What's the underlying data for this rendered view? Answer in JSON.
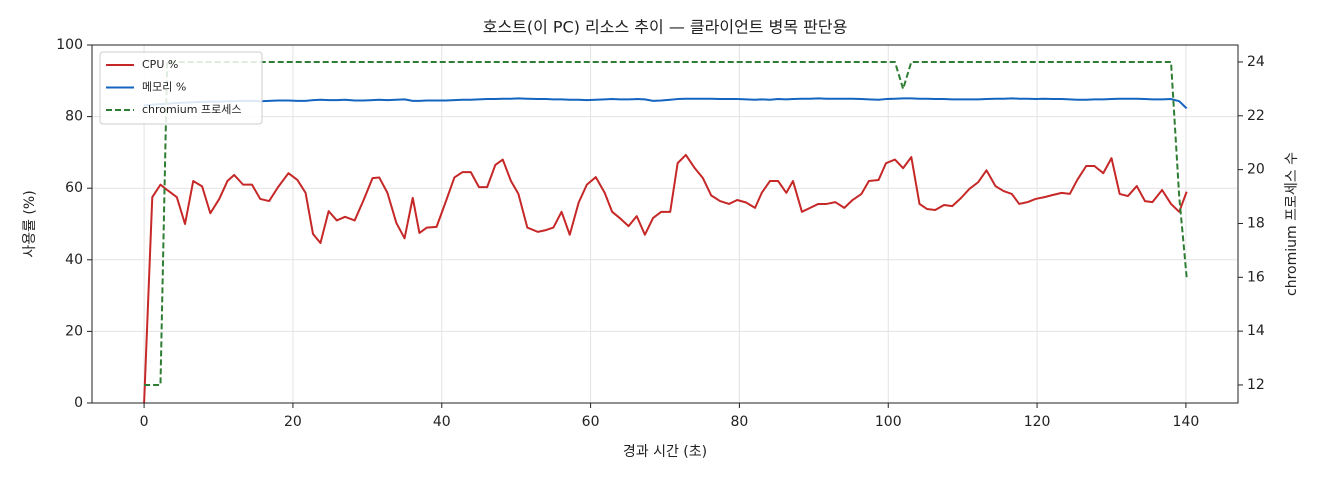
{
  "chart_data": {
    "type": "line",
    "title": "호스트(이 PC) 리소스 추이 — 클라이언트 병목 판단용",
    "xlabel": "경과 시간 (초)",
    "ylabel": "사용률 (%)",
    "y2label": "chromium 프로세스 수",
    "x": [
      0,
      1.1,
      2.2,
      3.1,
      4.4,
      5.5,
      6.6,
      7.8,
      8.9,
      10.1,
      11.2,
      12.1,
      13.3,
      14.5,
      15.6,
      16.8,
      18,
      19.4,
      20.6,
      21.7,
      22.7,
      23.7,
      24.8,
      25.9,
      27,
      28.3,
      29.5,
      30.7,
      31.6,
      32.7,
      33.9,
      35,
      36.1,
      37,
      38,
      39.3,
      40.5,
      41.7,
      42.8,
      43.9,
      45,
      46.1,
      47.2,
      48.2,
      49.3,
      50.3,
      51.5,
      52.9,
      54,
      55,
      56.1,
      57.2,
      58.4,
      59.5,
      60.7,
      61.9,
      62.9,
      63.9,
      65.1,
      66.2,
      67.3,
      68.4,
      69.5,
      70.7,
      71.7,
      72.8,
      74,
      75.1,
      76.2,
      77.4,
      78.6,
      79.7,
      80.9,
      82.1,
      83,
      84.1,
      85.2,
      86.3,
      87.2,
      88.4,
      89.5,
      90.6,
      91.7,
      92.9,
      94.1,
      95.2,
      96.4,
      97.4,
      98.7,
      99.7,
      100.9,
      102,
      103.1,
      104.2,
      105.2,
      106.3,
      107.5,
      108.6,
      109.8,
      110.9,
      112.1,
      113.2,
      114.4,
      115.5,
      116.6,
      117.6,
      118.7,
      119.8,
      121,
      122.1,
      123.3,
      124.4,
      125.4,
      126.6,
      127.7,
      128.9,
      130,
      131.1,
      132.2,
      133.4,
      134.5,
      135.5,
      136.8,
      138,
      139.1,
      140.1
    ],
    "series": [
      {
        "name": "CPU %",
        "color": "#c62828",
        "values": [
          0,
          57.5,
          61,
          59.5,
          57.5,
          50,
          62,
          60.5,
          53,
          57,
          62,
          63.7,
          61,
          61,
          57,
          56.4,
          60.3,
          64.2,
          62.3,
          58.7,
          47.2,
          44.7,
          53.6,
          51,
          52,
          51,
          56.7,
          62.8,
          63,
          58.7,
          50.3,
          46,
          57.3,
          47.5,
          49,
          49.2,
          56,
          63,
          64.5,
          64.5,
          60.3,
          60.3,
          66.5,
          68,
          62,
          58.4,
          49,
          47.8,
          48.3,
          49,
          53.4,
          47,
          56,
          61,
          63.1,
          58.7,
          53.4,
          51.7,
          49.4,
          52.2,
          47,
          51.7,
          53.4,
          53.4,
          67,
          69.3,
          65.6,
          62.8,
          58,
          56.4,
          55.6,
          56.7,
          56,
          54.5,
          58.7,
          62,
          62,
          58.7,
          62,
          53.4,
          54.5,
          55.6,
          55.6,
          56.1,
          54.5,
          56.7,
          58.4,
          62,
          62.3,
          67,
          68,
          65.6,
          68.7,
          55.6,
          54.2,
          53.9,
          55.3,
          55,
          57.3,
          59.8,
          61.7,
          65,
          60.6,
          59.2,
          58.4,
          55.6,
          56.1,
          57,
          57.5,
          58.1,
          58.7,
          58.4,
          62.3,
          66.2,
          66.2,
          64.2,
          68.4,
          58.4,
          57.8,
          60.6,
          56.4,
          56.1,
          59.5,
          55.6,
          53.4,
          59
        ]
      },
      {
        "name": "메모리 %",
        "color": "#1565c0",
        "values": [
          83.1,
          83.3,
          83.5,
          83.6,
          83.8,
          83.9,
          84,
          84.1,
          84.2,
          84.2,
          84.3,
          84.3,
          84.4,
          84.4,
          84.3,
          84.4,
          84.5,
          84.5,
          84.4,
          84.4,
          84.6,
          84.7,
          84.6,
          84.6,
          84.7,
          84.5,
          84.5,
          84.6,
          84.7,
          84.6,
          84.7,
          84.8,
          84.4,
          84.4,
          84.5,
          84.5,
          84.5,
          84.6,
          84.7,
          84.7,
          84.8,
          84.9,
          84.9,
          85,
          85,
          85.1,
          85,
          84.9,
          84.9,
          84.8,
          84.8,
          84.7,
          84.7,
          84.6,
          84.7,
          84.8,
          84.9,
          84.8,
          84.8,
          84.9,
          84.8,
          84.4,
          84.5,
          84.7,
          84.9,
          85,
          85,
          85,
          85,
          84.9,
          84.9,
          84.9,
          84.8,
          84.7,
          84.8,
          84.7,
          84.9,
          84.8,
          84.9,
          85,
          85,
          85.1,
          85,
          85,
          85,
          85,
          84.9,
          84.8,
          84.7,
          84.9,
          85,
          85.1,
          85.1,
          85,
          85,
          84.9,
          84.9,
          84.8,
          84.8,
          84.8,
          84.8,
          84.9,
          85,
          85,
          85.1,
          85,
          85,
          84.9,
          85,
          84.9,
          84.9,
          84.8,
          84.7,
          84.7,
          84.8,
          84.8,
          84.9,
          85,
          85,
          85,
          84.9,
          84.8,
          84.8,
          84.9,
          84.3,
          82.3
        ]
      },
      {
        "name": "chromium 프로세스",
        "color": "#2e7d32",
        "dashed": true,
        "axis": "y2",
        "values": [
          12,
          12,
          12,
          24,
          24,
          24,
          24,
          24,
          24,
          24,
          24,
          24,
          24,
          24,
          24,
          24,
          24,
          24,
          24,
          24,
          24,
          24,
          24,
          24,
          24,
          24,
          24,
          24,
          24,
          24,
          24,
          24,
          24,
          24,
          24,
          24,
          24,
          24,
          24,
          24,
          24,
          24,
          24,
          24,
          24,
          24,
          24,
          24,
          24,
          24,
          24,
          24,
          24,
          24,
          24,
          24,
          24,
          24,
          24,
          24,
          24,
          24,
          24,
          24,
          24,
          24,
          24,
          24,
          24,
          24,
          24,
          24,
          24,
          24,
          24,
          24,
          24,
          24,
          24,
          24,
          24,
          24,
          24,
          24,
          24,
          24,
          24,
          24,
          24,
          24,
          24,
          23,
          24,
          24,
          24,
          24,
          24,
          24,
          24,
          24,
          24,
          24,
          24,
          24,
          24,
          24,
          24,
          24,
          24,
          24,
          24,
          24,
          24,
          24,
          24,
          24,
          24,
          24,
          24,
          24,
          24,
          24,
          24,
          24,
          19,
          16
        ]
      }
    ],
    "xlim": [
      -7,
      147
    ],
    "xticks": [
      0,
      20,
      40,
      60,
      80,
      100,
      120,
      140
    ],
    "ylim": [
      0,
      100
    ],
    "yticks": [
      0,
      20,
      40,
      60,
      80,
      100
    ],
    "y2lim": [
      11.33,
      24.63
    ],
    "y2ticks": [
      12,
      14,
      16,
      18,
      20,
      22,
      24
    ],
    "grid": true,
    "legend": "upper-left"
  }
}
